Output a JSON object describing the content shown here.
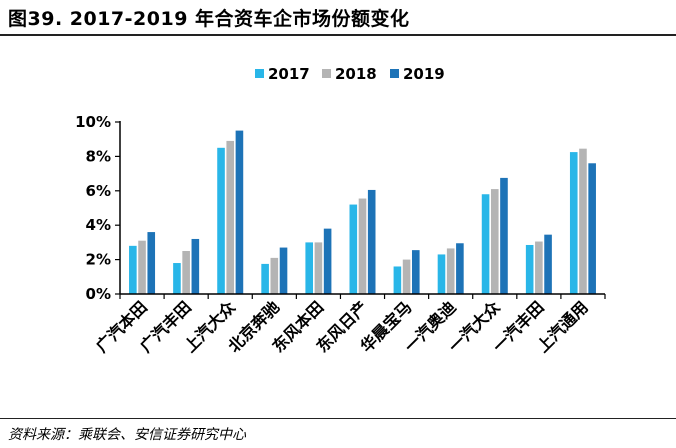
{
  "header": {
    "title": "图39. 2017-2019 年合资车企市场份额变化"
  },
  "footer": {
    "source": "资料来源：乘联会、安信证券研究中心"
  },
  "chart_data": {
    "type": "bar",
    "title": "图39. 2017-2019 年合资车企市场份额变化",
    "xlabel": "",
    "ylabel": "",
    "ylim": [
      0,
      10
    ],
    "yticks": [
      "0%",
      "2%",
      "4%",
      "6%",
      "8%",
      "10%"
    ],
    "legend_position": "top",
    "categories": [
      "广汽本田",
      "广汽丰田",
      "上汽大众",
      "北京奔驰",
      "东风本田",
      "东风日产",
      "华晨宝马",
      "一汽奥迪",
      "一汽大众",
      "一汽丰田",
      "上汽通用"
    ],
    "series": [
      {
        "name": "2017",
        "color": "#29B6E8",
        "values": [
          2.8,
          1.8,
          8.5,
          1.75,
          3.0,
          5.2,
          1.6,
          2.3,
          5.8,
          2.85,
          8.25
        ]
      },
      {
        "name": "2018",
        "color": "#B4B4B4",
        "values": [
          3.1,
          2.5,
          8.9,
          2.1,
          3.0,
          5.55,
          2.0,
          2.65,
          6.1,
          3.05,
          8.45
        ]
      },
      {
        "name": "2019",
        "color": "#1D73B7",
        "values": [
          3.6,
          3.2,
          9.5,
          2.7,
          3.8,
          6.05,
          2.55,
          2.95,
          6.75,
          3.45,
          7.6
        ]
      }
    ]
  }
}
